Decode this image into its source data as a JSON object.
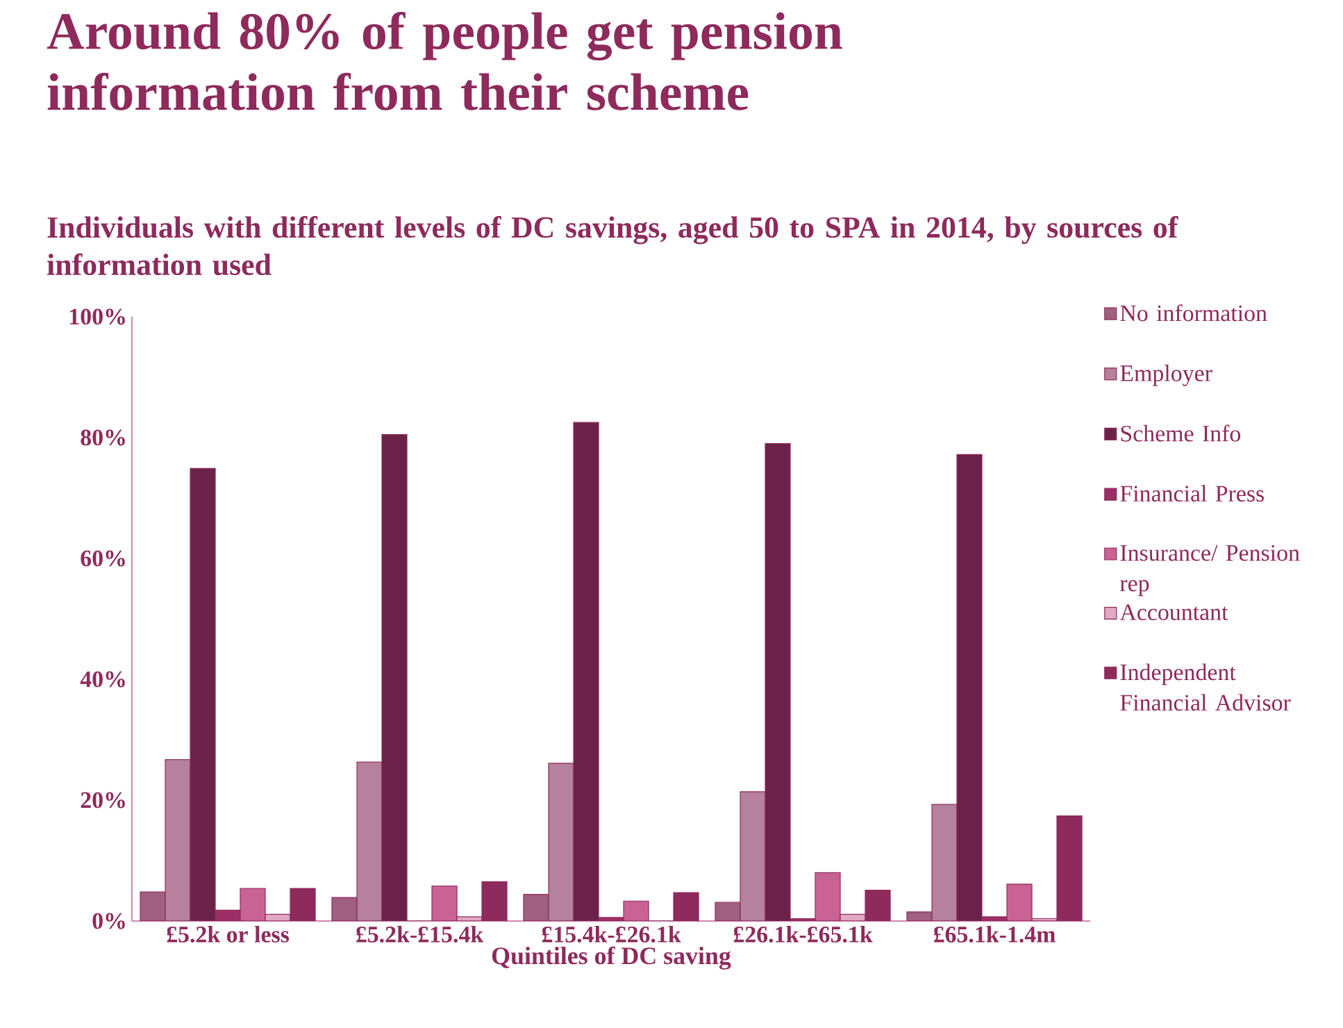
{
  "chart_data": {
    "type": "bar",
    "title": "Around 80% of people get pension information from their scheme",
    "subtitle": "Individuals with different levels of DC savings, aged 50 to SPA in 2014, by sources of information used",
    "xlabel": "Quintiles of DC saving",
    "categories": [
      "£5.2k or less",
      "£5.2k-£15.4k",
      "£15.4k-£26.1k",
      "£26.1k-£65.1k",
      "£65.1k-1.4m"
    ],
    "series": [
      {
        "name": "No information",
        "color": "#a0607f",
        "values": [
          4.8,
          3.9,
          4.4,
          3.1,
          1.5
        ]
      },
      {
        "name": "Employer",
        "color": "#b5819c",
        "values": [
          26.7,
          26.3,
          26.1,
          21.4,
          19.3
        ]
      },
      {
        "name": "Scheme Info",
        "color": "#6b2248",
        "values": [
          74.9,
          80.5,
          82.5,
          79.0,
          77.2
        ]
      },
      {
        "name": "Financial Press",
        "color": "#9b2f65",
        "values": [
          1.8,
          0,
          0.6,
          0.4,
          0.7
        ]
      },
      {
        "name": "Insurance/ Pension rep",
        "color": "#c96394",
        "values": [
          5.4,
          5.8,
          3.3,
          8.0,
          6.1
        ]
      },
      {
        "name": "Accountant",
        "color": "#e0a9c4",
        "values": [
          1.1,
          0.7,
          0,
          1.1,
          0.4
        ]
      },
      {
        "name": "Independent Financial Advisor",
        "color": "#8e2a5c",
        "values": [
          5.4,
          6.5,
          4.7,
          5.1,
          17.4
        ]
      }
    ],
    "ylim": [
      0,
      100
    ],
    "yticks": [
      {
        "value": 0,
        "label": "0%"
      },
      {
        "value": 20,
        "label": "20%"
      },
      {
        "value": 40,
        "label": "40%"
      },
      {
        "value": 60,
        "label": "60%"
      },
      {
        "value": 80,
        "label": "80%"
      },
      {
        "value": 100,
        "label": "100%"
      }
    ],
    "legend": "right"
  }
}
